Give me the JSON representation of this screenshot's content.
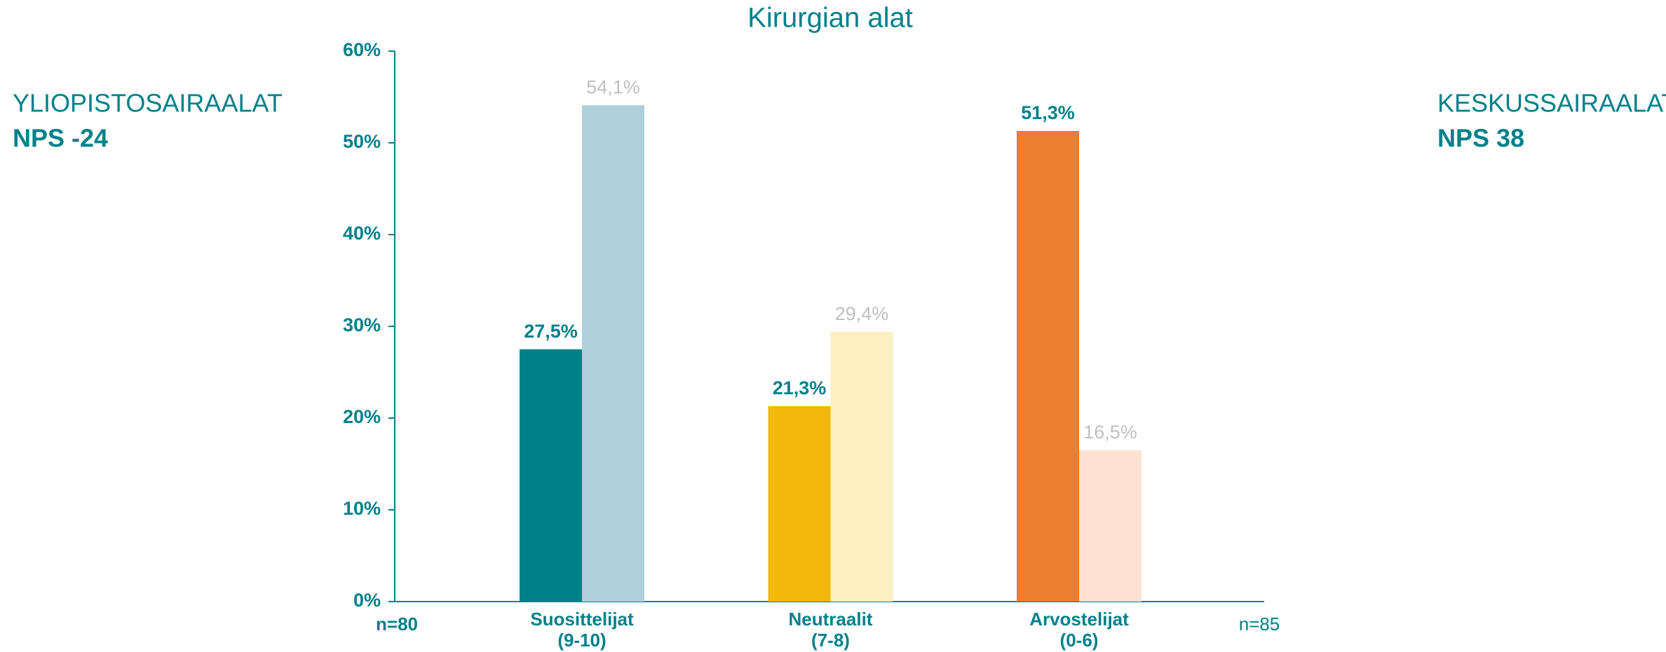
{
  "chart_data": {
    "type": "bar",
    "title": "Kirurgian alat",
    "categories": [
      [
        "Suosittelijat",
        "(9-10)"
      ],
      [
        "Neutraalit",
        "(7-8)"
      ],
      [
        "Arvostelijat",
        "(0-6)"
      ]
    ],
    "series": [
      {
        "name": "YLIOPISTOSAIRAALAT",
        "nps": "NPS -24",
        "n": "n=80",
        "colors": [
          "#00818a",
          "#f2b90c",
          "#ed7d31"
        ],
        "label_color": "#00818a",
        "values": [
          27.5,
          21.3,
          51.3
        ],
        "value_labels": [
          "27,5%",
          "21,3%",
          "51,3%"
        ]
      },
      {
        "name": "KESKUSSAIRAALAT",
        "nps": "NPS 38",
        "n": "n=85",
        "colors": [
          "#aed0da",
          "#fcefc0",
          "#fde2d4"
        ],
        "label_color": "#bfbfbf",
        "values": [
          54.1,
          29.4,
          16.5
        ],
        "value_labels": [
          "54,1%",
          "29,4%",
          "16,5%"
        ]
      }
    ],
    "ylim": [
      0,
      60
    ],
    "yticks": [
      {
        "value": 0,
        "label": "0%"
      },
      {
        "value": 10,
        "label": "10%"
      },
      {
        "value": 20,
        "label": "20%"
      },
      {
        "value": 30,
        "label": "30%"
      },
      {
        "value": 40,
        "label": "40%"
      },
      {
        "value": 50,
        "label": "50%"
      },
      {
        "value": 60,
        "label": "60%"
      }
    ]
  }
}
